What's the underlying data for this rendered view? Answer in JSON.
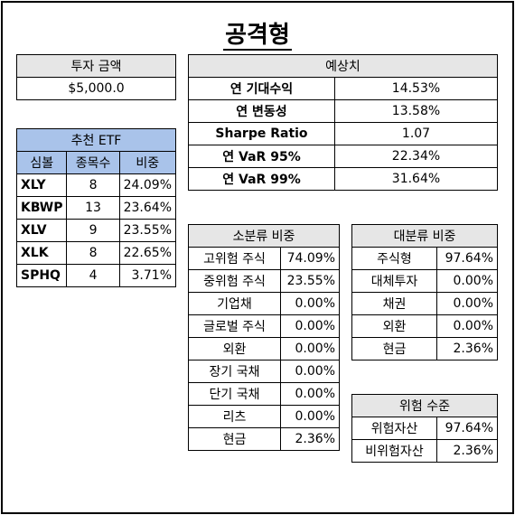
{
  "title": "공격형",
  "investment": {
    "header": "투자 금액",
    "amount": "$5,000.0"
  },
  "forecast": {
    "header": "예상치",
    "rows": [
      {
        "label": "연 기대수익",
        "value": "14.53%"
      },
      {
        "label": "연 변동성",
        "value": "13.58%"
      },
      {
        "label": "Sharpe Ratio",
        "value": "1.07"
      },
      {
        "label": "연 VaR 95%",
        "value": "22.34%"
      },
      {
        "label": "연 VaR 99%",
        "value": "31.64%"
      }
    ]
  },
  "etf": {
    "header": "추천 ETF",
    "columns": [
      "심볼",
      "종목수",
      "비중"
    ],
    "rows": [
      {
        "symbol": "XLY",
        "count": "8",
        "weight": "24.09%"
      },
      {
        "symbol": "KBWP",
        "count": "13",
        "weight": "23.64%"
      },
      {
        "symbol": "XLV",
        "count": "9",
        "weight": "23.55%"
      },
      {
        "symbol": "XLK",
        "count": "8",
        "weight": "22.65%"
      },
      {
        "symbol": "SPHQ",
        "count": "4",
        "weight": "3.71%"
      }
    ]
  },
  "sub_class": {
    "header": "소분류 비중",
    "rows": [
      {
        "label": "고위험 주식",
        "value": "74.09%"
      },
      {
        "label": "중위험 주식",
        "value": "23.55%"
      },
      {
        "label": "기업채",
        "value": "0.00%"
      },
      {
        "label": "글로벌 주식",
        "value": "0.00%"
      },
      {
        "label": "외환",
        "value": "0.00%"
      },
      {
        "label": "장기 국채",
        "value": "0.00%"
      },
      {
        "label": "단기 국채",
        "value": "0.00%"
      },
      {
        "label": "리츠",
        "value": "0.00%"
      },
      {
        "label": "현금",
        "value": "2.36%"
      }
    ]
  },
  "main_class": {
    "header": "대분류 비중",
    "rows": [
      {
        "label": "주식형",
        "value": "97.64%"
      },
      {
        "label": "대체투자",
        "value": "0.00%"
      },
      {
        "label": "채권",
        "value": "0.00%"
      },
      {
        "label": "외환",
        "value": "0.00%"
      },
      {
        "label": "현금",
        "value": "2.36%"
      }
    ]
  },
  "risk_level": {
    "header": "위험 수준",
    "rows": [
      {
        "label": "위험자산",
        "value": "97.64%"
      },
      {
        "label": "비위험자산",
        "value": "2.36%"
      }
    ]
  }
}
